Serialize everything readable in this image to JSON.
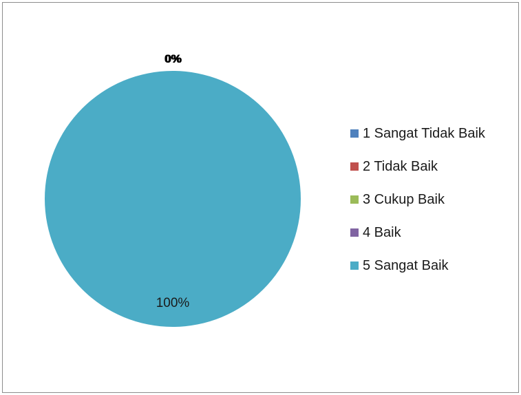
{
  "chart_data": {
    "type": "pie",
    "categories": [
      "1 Sangat Tidak Baik",
      "2 Tidak Baik",
      "3 Cukup Baik",
      "4 Baik",
      "5 Sangat Baik"
    ],
    "values": [
      0,
      0,
      0,
      0,
      100
    ],
    "colors": [
      "#4f81bd",
      "#c0504d",
      "#9bbb59",
      "#8064a2",
      "#4bacc6"
    ],
    "data_labels": [
      "0%",
      "0%",
      "0%",
      "0%",
      "100%"
    ],
    "legend_position": "right",
    "title": ""
  }
}
